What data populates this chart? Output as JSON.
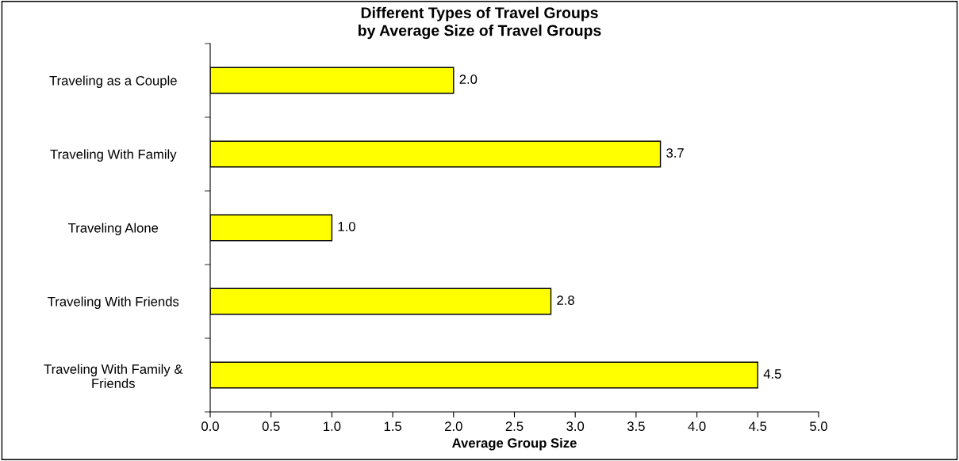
{
  "chart_data": {
    "type": "bar",
    "orientation": "horizontal",
    "title": "Different Types of Travel Groups\nby Average Size of Travel Groups",
    "xlabel": "Average Group Size",
    "categories": [
      "Traveling as a Couple",
      "Traveling With Family",
      "Traveling Alone",
      "Traveling With Friends",
      "Traveling With Family & Friends"
    ],
    "values": [
      2.0,
      3.7,
      1.0,
      2.8,
      4.5
    ],
    "color": "#ffff00",
    "value_labels": [
      "2.0",
      "3.7",
      "1.0",
      "2.8",
      "4.5"
    ],
    "grid": false,
    "xlim": [
      0,
      5
    ],
    "xticks": [
      {
        "value": 0,
        "label": "0.0"
      },
      {
        "value": 0.5,
        "label": "0.5"
      },
      {
        "value": 1,
        "label": "1.0"
      },
      {
        "value": 1.5,
        "label": "1.5"
      },
      {
        "value": 2,
        "label": "2.0"
      },
      {
        "value": 2.5,
        "label": "2.5"
      },
      {
        "value": 3,
        "label": "3.0"
      },
      {
        "value": 3.5,
        "label": "3.5"
      },
      {
        "value": 4,
        "label": "4.0"
      },
      {
        "value": 4.5,
        "label": "4.5"
      },
      {
        "value": 5,
        "label": "5.0"
      }
    ]
  }
}
